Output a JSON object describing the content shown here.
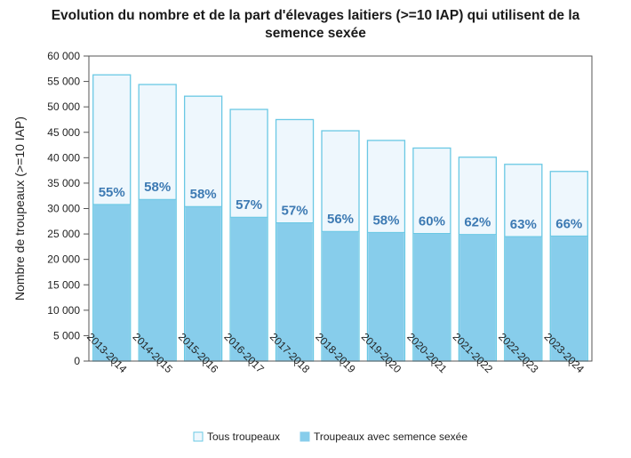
{
  "chart_data": {
    "type": "bar",
    "title_lines": [
      "Evolution du nombre et de la part d'élevages laitiers (>=10 IAP) qui utilisent de la",
      "semence sexée"
    ],
    "xlabel": "",
    "ylabel": "Nombre de troupeaux (>=10 IAP)",
    "ylim": [
      0,
      60000
    ],
    "ytick_step": 5000,
    "ytick_labels": [
      "0",
      "5 000",
      "10 000",
      "15 000",
      "20 000",
      "25 000",
      "30 000",
      "35 000",
      "40 000",
      "45 000",
      "50 000",
      "55 000",
      "60 000"
    ],
    "categories": [
      "2013-2014",
      "2014-2015",
      "2015-2016",
      "2016-2017",
      "2017-2018",
      "2018-2019",
      "2019-2020",
      "2020-2021",
      "2021-2022",
      "2022-2023",
      "2023-2024"
    ],
    "series": [
      {
        "name": "Tous troupeaux",
        "values": [
          56300,
          54400,
          52100,
          49500,
          47500,
          45300,
          43400,
          41900,
          40100,
          38700,
          37300
        ]
      },
      {
        "name": "Troupeaux avec semence sexée",
        "values": [
          30800,
          31800,
          30400,
          28300,
          27200,
          25500,
          25300,
          25100,
          24900,
          24500,
          24600
        ]
      }
    ],
    "data_labels": [
      "55%",
      "58%",
      "58%",
      "57%",
      "57%",
      "56%",
      "58%",
      "60%",
      "62%",
      "63%",
      "66%"
    ],
    "legend_position": "bottom",
    "grid": false,
    "colors": {
      "total_fill": "#eef7fd",
      "total_stroke": "#6ac8e4",
      "sexed_fill": "#87cdeb",
      "label_color": "#3d7ab3"
    }
  }
}
